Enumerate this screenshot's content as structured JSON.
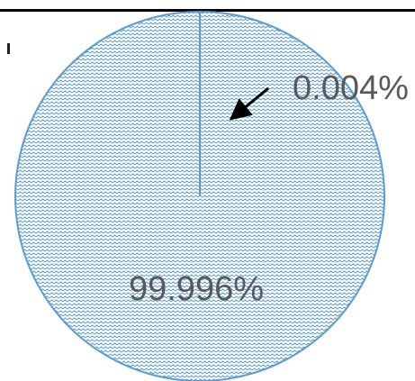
{
  "chart_data": {
    "type": "pie",
    "categories": [
      "",
      ""
    ],
    "values": [
      0.004,
      99.996
    ],
    "labels": [
      "0.004%",
      "99.996%"
    ],
    "title": "",
    "legend": "none",
    "colors": {
      "fill_pattern": "#5b9bd5",
      "outline": "#5b9bd5",
      "arrow": "#000000",
      "label": "#595959"
    }
  }
}
